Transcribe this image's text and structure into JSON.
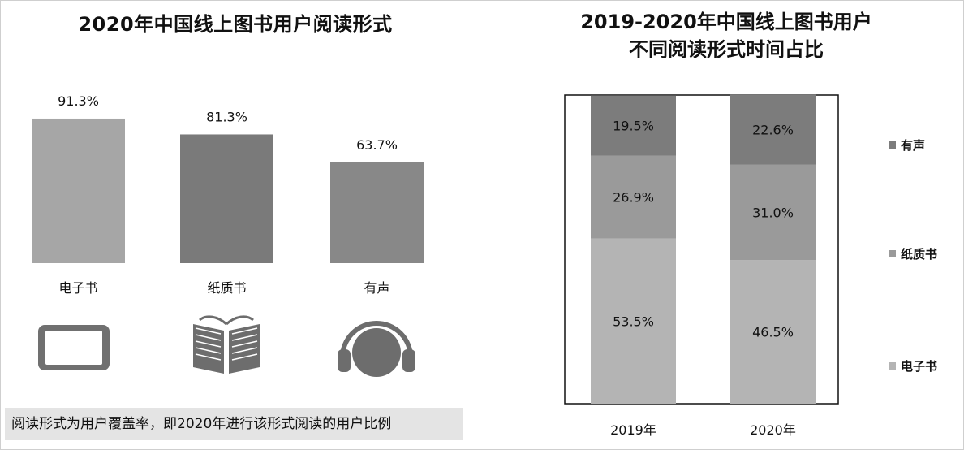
{
  "chart_data": [
    {
      "type": "bar",
      "title": "2020年中国线上图书用户阅读形式",
      "categories": [
        "电子书",
        "纸质书",
        "有声"
      ],
      "values": [
        91.3,
        81.3,
        63.7
      ],
      "value_labels": [
        "91.3%",
        "81.3%",
        "63.7%"
      ],
      "unit": "%",
      "icons": [
        "tablet-icon",
        "book-icon",
        "headphones-icon"
      ],
      "colors": [
        "#a6a6a6",
        "#7a7a7a",
        "#888888"
      ],
      "footnote": "阅读形式为用户覆盖率，即2020年进行该形式阅读的用户比例"
    },
    {
      "type": "bar",
      "stacked": true,
      "title": "2019-2020年中国线上图书用户不同阅读形式时间占比",
      "title_lines": [
        "2019-2020年中国线上图书用户",
        "不同阅读形式时间占比"
      ],
      "categories": [
        "2019年",
        "2020年"
      ],
      "series": [
        {
          "name": "电子书",
          "values": [
            53.5,
            46.5
          ],
          "labels": [
            "53.5%",
            "46.5%"
          ],
          "color": "#b4b4b4"
        },
        {
          "name": "纸质书",
          "values": [
            26.9,
            31.0
          ],
          "labels": [
            "26.9%",
            "31.0%"
          ],
          "color": "#9a9a9a"
        },
        {
          "name": "有声",
          "values": [
            19.5,
            22.6
          ],
          "labels": [
            "19.5%",
            "22.6%"
          ],
          "color": "#7c7c7c"
        }
      ],
      "legend_order": [
        "有声",
        "纸质书",
        "电子书"
      ],
      "legend_position": "right",
      "ylim": [
        0,
        100
      ]
    }
  ]
}
